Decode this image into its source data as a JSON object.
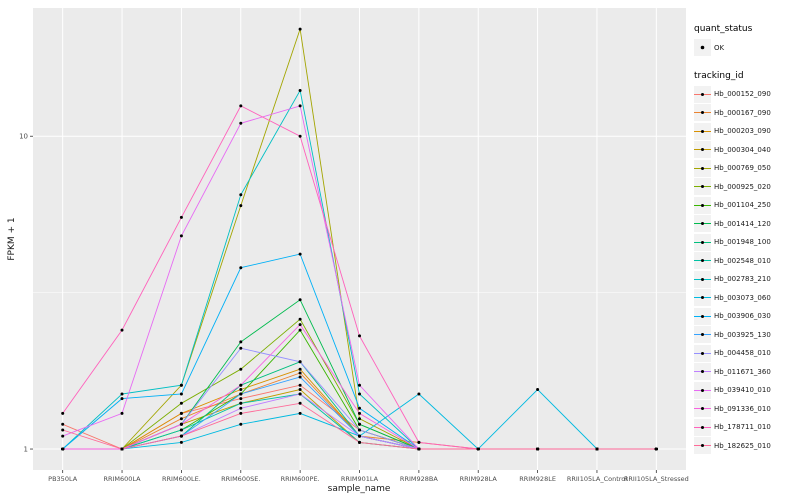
{
  "figure": {
    "background": "#FFFFFF",
    "panel_background": "#EBEBEB",
    "grid_color": "#FFFFFF",
    "axis_text_color": "#4D4D4D",
    "point_color": "#000000",
    "legend_key_background": "#F2F2F2"
  },
  "axes": {
    "x_title": "sample_name",
    "y_title": "FPKM + 1",
    "y_ticks": [
      "1",
      "10"
    ],
    "y_tick_values": [
      1,
      10
    ],
    "y_scale": "log10"
  },
  "legend": {
    "position": "right",
    "quant_status": {
      "title": "quant_status",
      "items": [
        {
          "label": "OK",
          "symbol": "black-point"
        }
      ]
    },
    "tracking_id": {
      "title": "tracking_id"
    }
  },
  "chart_data": {
    "type": "line",
    "title": "",
    "xlabel": "sample_name",
    "ylabel": "FPKM + 1",
    "y_scale": "log10",
    "ylim": [
      0.857,
      25.7
    ],
    "y_major_gridlines": [
      1,
      10
    ],
    "y_minor_gridlines": [
      3.1623
    ],
    "grid": true,
    "legend_position": "right",
    "categories": [
      "PB350LA",
      "RRIM600LA",
      "RRIM600LE.",
      "RRIM600SE.",
      "RRIM600PE.",
      "RRIM901LA",
      "RRIM928BA",
      "RRIM928LA",
      "RRIM928LE",
      "RRII105LA_Control",
      "RRII105LA_Stressed"
    ],
    "series": [
      {
        "name": "Hb_000152_090",
        "color": "#F8766D",
        "values": [
          1.2,
          1.0,
          1.3,
          1.45,
          1.6,
          1.15,
          1.0,
          1.0,
          1.0,
          1.0,
          1.0
        ]
      },
      {
        "name": "Hb_000167_090",
        "color": "#EA8331",
        "values": [
          1.0,
          1.0,
          1.25,
          1.5,
          1.75,
          1.1,
          1.05,
          1.0,
          1.0,
          1.0,
          1.0
        ]
      },
      {
        "name": "Hb_000203_090",
        "color": "#D89000",
        "values": [
          1.0,
          1.0,
          1.3,
          1.55,
          1.8,
          1.1,
          1.0,
          1.0,
          1.0,
          1.0,
          1.0
        ]
      },
      {
        "name": "Hb_000304_040",
        "color": "#C09B00",
        "values": [
          1.0,
          1.0,
          1.2,
          1.4,
          1.55,
          1.05,
          1.0,
          1.0,
          1.0,
          1.0,
          1.0
        ]
      },
      {
        "name": "Hb_000769_050",
        "color": "#A3A500",
        "values": [
          1.0,
          1.0,
          1.6,
          6.0,
          22.0,
          1.25,
          1.0,
          1.0,
          1.0,
          1.0,
          1.0
        ]
      },
      {
        "name": "Hb_000925_020",
        "color": "#7CAE00",
        "values": [
          1.0,
          1.0,
          1.4,
          1.8,
          2.6,
          1.2,
          1.0,
          1.0,
          1.0,
          1.0,
          1.0
        ]
      },
      {
        "name": "Hb_001104_250",
        "color": "#39B600",
        "values": [
          1.0,
          1.0,
          1.15,
          1.5,
          2.4,
          1.15,
          1.0,
          1.0,
          1.0,
          1.0,
          1.0
        ]
      },
      {
        "name": "Hb_001414_120",
        "color": "#00BB4E",
        "values": [
          1.0,
          1.0,
          1.2,
          2.2,
          3.0,
          1.2,
          1.0,
          1.0,
          1.0,
          1.0,
          1.0
        ]
      },
      {
        "name": "Hb_001948_100",
        "color": "#00BF7D",
        "values": [
          1.0,
          1.0,
          1.1,
          1.6,
          1.9,
          1.1,
          1.0,
          1.0,
          1.0,
          1.0,
          1.0
        ]
      },
      {
        "name": "Hb_002548_010",
        "color": "#00C1A3",
        "values": [
          1.0,
          1.0,
          1.15,
          1.4,
          1.5,
          1.05,
          1.0,
          1.0,
          1.0,
          1.0,
          1.0
        ]
      },
      {
        "name": "Hb_002783_210",
        "color": "#00BFC4",
        "values": [
          1.0,
          1.5,
          1.6,
          6.5,
          14.0,
          1.5,
          1.0,
          1.0,
          1.0,
          1.0,
          1.0
        ]
      },
      {
        "name": "Hb_003073_060",
        "color": "#00BAE0",
        "values": [
          1.0,
          1.0,
          1.05,
          1.2,
          1.3,
          1.1,
          1.5,
          1.0,
          1.55,
          1.0,
          1.0
        ]
      },
      {
        "name": "Hb_003906_030",
        "color": "#00B0F6",
        "values": [
          1.0,
          1.45,
          1.5,
          3.8,
          4.2,
          1.35,
          1.0,
          1.0,
          1.0,
          1.0,
          1.0
        ]
      },
      {
        "name": "Hb_003925_130",
        "color": "#35A2FF",
        "values": [
          1.0,
          1.0,
          1.1,
          1.5,
          1.7,
          1.1,
          1.0,
          1.0,
          1.0,
          1.0,
          1.0
        ]
      },
      {
        "name": "Hb_004458_010",
        "color": "#9590FF",
        "values": [
          1.0,
          1.0,
          1.2,
          2.1,
          1.9,
          1.15,
          1.0,
          1.0,
          1.0,
          1.0,
          1.0
        ]
      },
      {
        "name": "Hb_011671_360",
        "color": "#BF80FF",
        "values": [
          1.0,
          1.0,
          1.1,
          1.35,
          1.5,
          1.1,
          1.0,
          1.0,
          1.0,
          1.0,
          1.0
        ]
      },
      {
        "name": "Hb_039410_010",
        "color": "#E76BF3",
        "values": [
          1.1,
          1.3,
          4.8,
          11.0,
          12.5,
          1.6,
          1.0,
          1.0,
          1.0,
          1.0,
          1.0
        ]
      },
      {
        "name": "Hb_091336_010",
        "color": "#F763E0",
        "values": [
          1.0,
          1.0,
          1.2,
          1.6,
          2.5,
          1.3,
          1.0,
          1.0,
          1.0,
          1.0,
          1.0
        ]
      },
      {
        "name": "Hb_178711_010",
        "color": "#FF62BC",
        "values": [
          1.3,
          2.4,
          5.5,
          12.5,
          10.0,
          2.3,
          1.05,
          1.0,
          1.0,
          1.0,
          1.0
        ]
      },
      {
        "name": "Hb_182625_010",
        "color": "#FF6A98",
        "values": [
          1.15,
          1.0,
          1.1,
          1.3,
          1.4,
          1.05,
          1.0,
          1.0,
          1.0,
          1.0,
          1.0
        ]
      }
    ]
  }
}
